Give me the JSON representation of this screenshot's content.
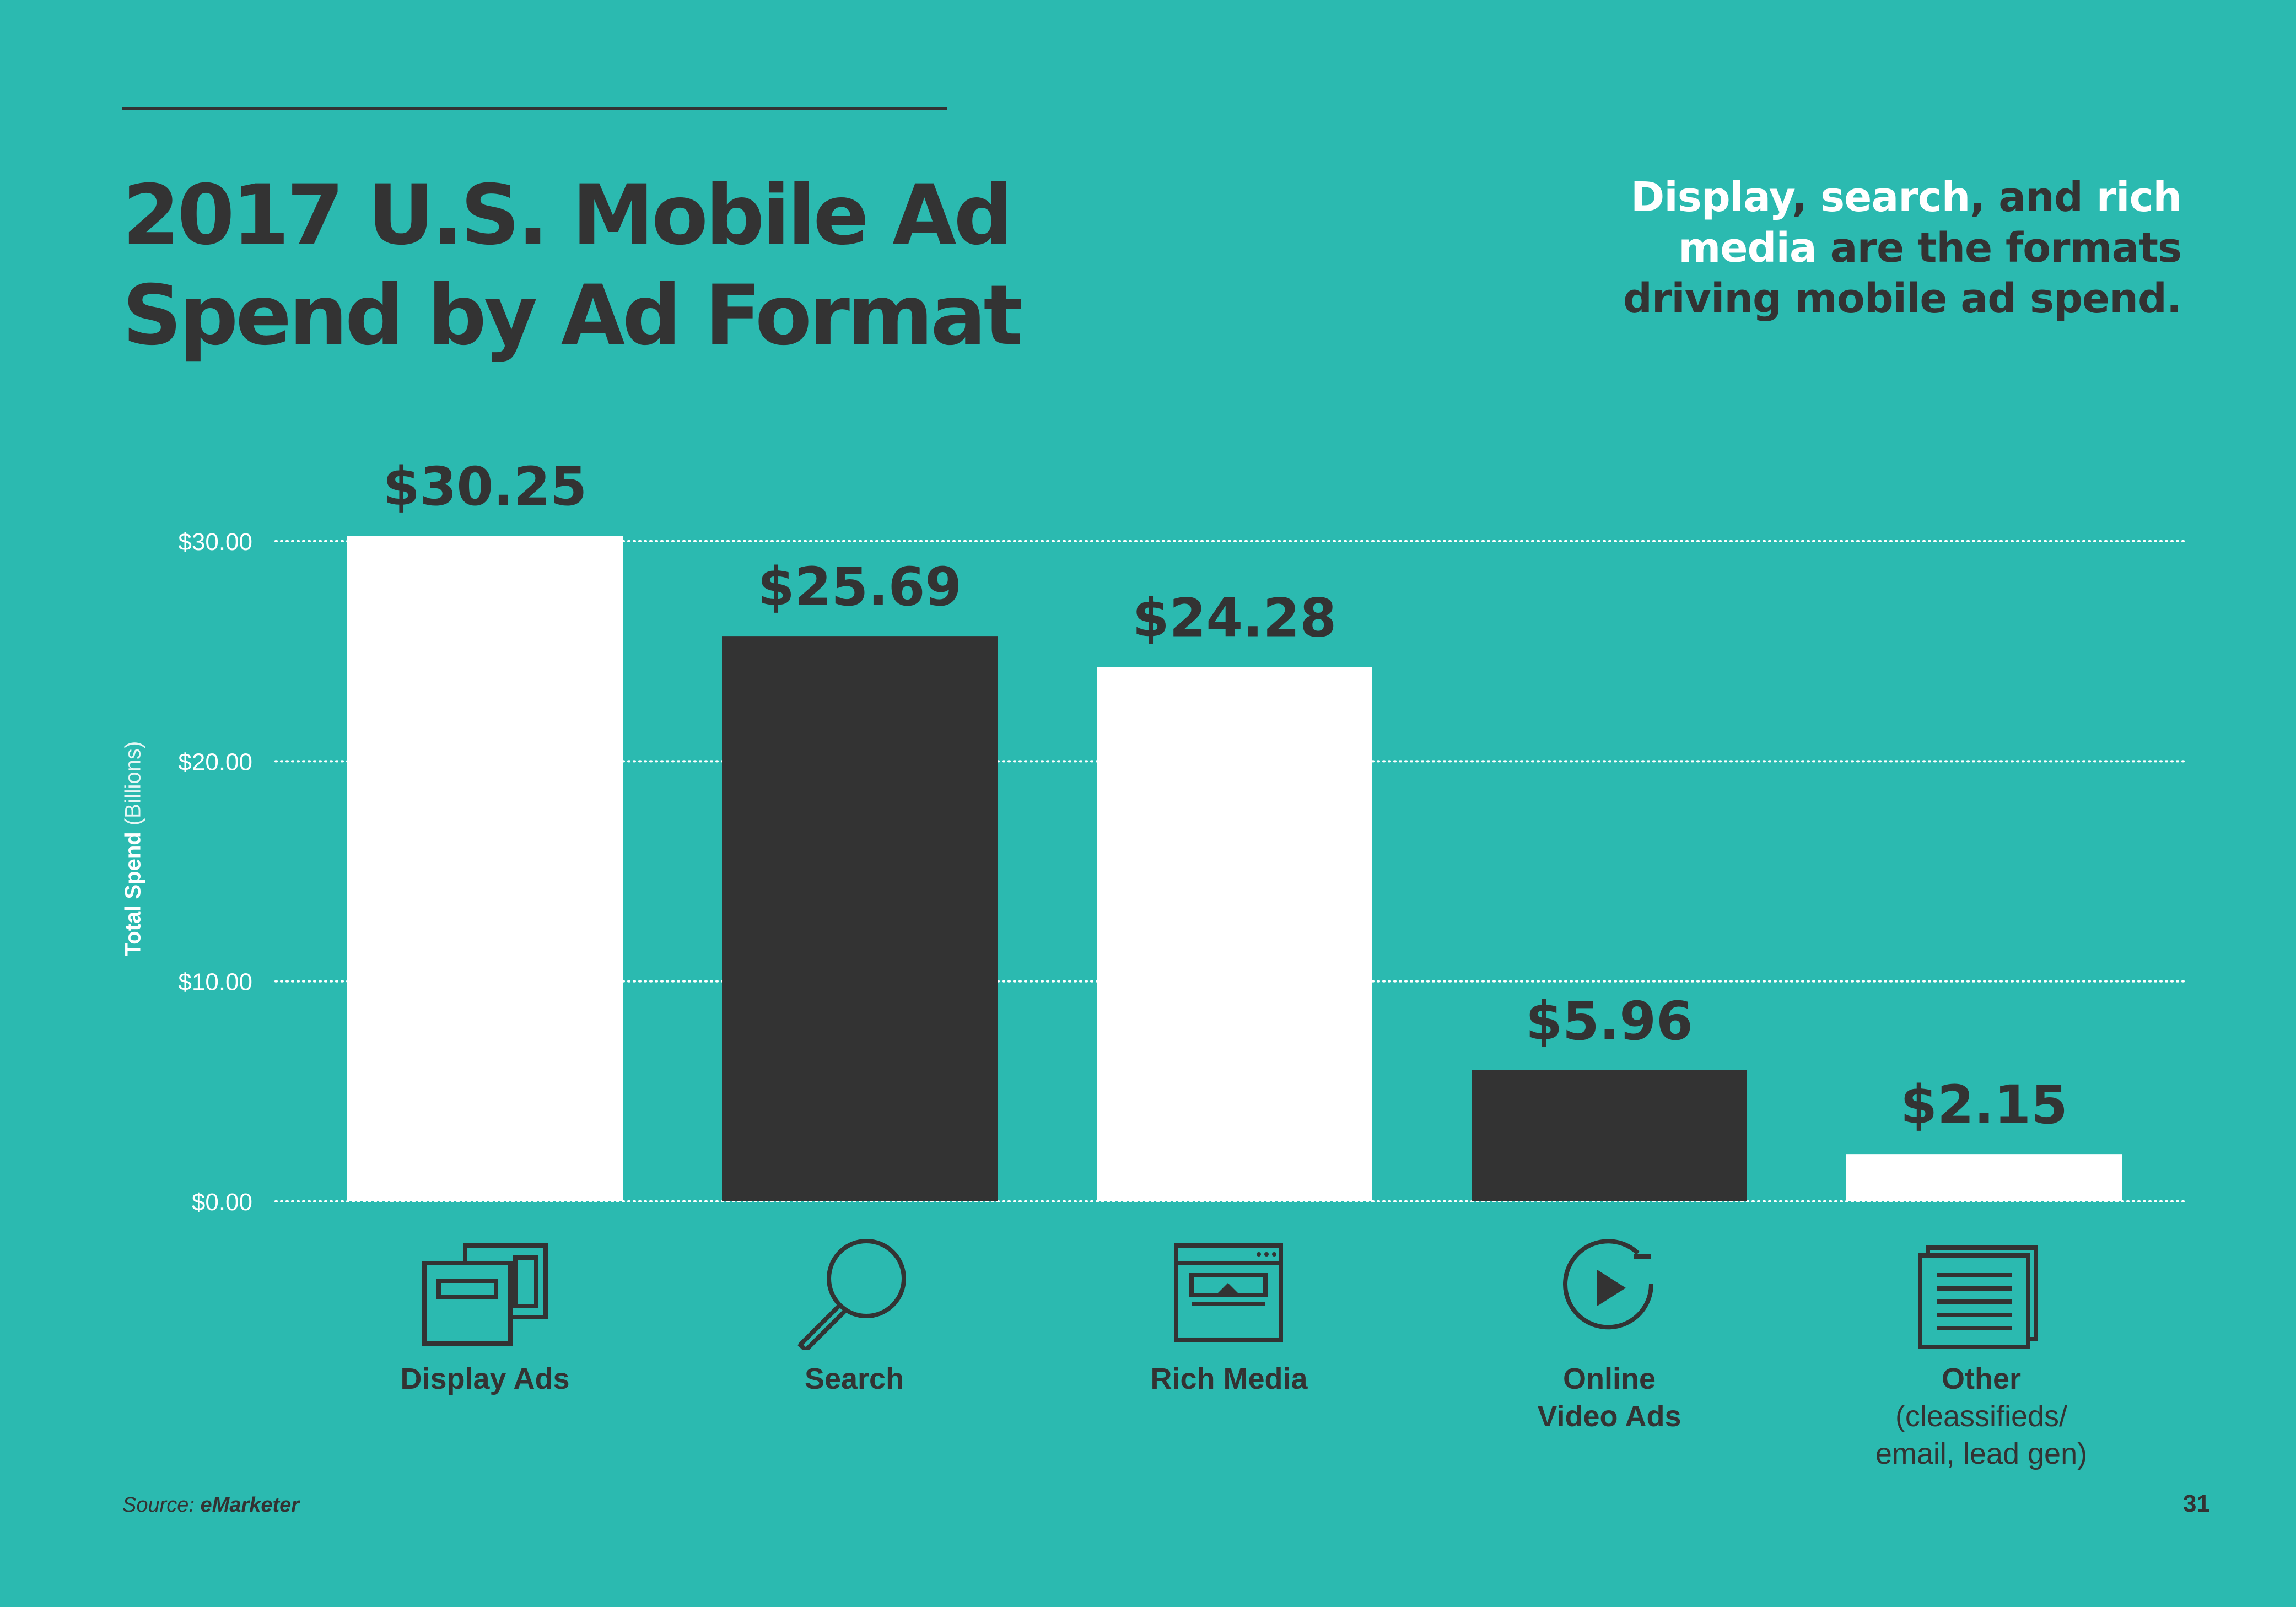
{
  "header": {
    "title_line1": "2017 U.S. Mobile Ad",
    "title_line2": "Spend by Ad Format",
    "callout": {
      "w1": "Display",
      "w2": ",",
      "w3": "search",
      "w4": ", and",
      "w5": "rich",
      "w6": "media",
      "w7": "are the formats",
      "w8": "driving mobile ad spend."
    }
  },
  "colors": {
    "background": "#2bbab0",
    "dark": "#333333",
    "light": "#ffffff"
  },
  "chart_data": {
    "type": "bar",
    "ylabel_bold": "Total Spend",
    "ylabel_unit": "(Billions)",
    "ylim": [
      0,
      30
    ],
    "yticks": [
      {
        "value": 0,
        "label": "$0.00"
      },
      {
        "value": 10,
        "label": "$10.00"
      },
      {
        "value": 20,
        "label": "$20.00"
      },
      {
        "value": 30,
        "label": "$30.00"
      }
    ],
    "grid": "dotted horizontal",
    "categories": [
      "Display Ads",
      "Search",
      "Rich Media",
      "Online Video Ads",
      "Other (cleassifieds/ email, lead gen)"
    ],
    "values": [
      30.25,
      25.69,
      24.28,
      5.96,
      2.15
    ],
    "value_labels": [
      "$30.25",
      "$25.69",
      "$24.28",
      "$5.96",
      "$2.15"
    ],
    "bar_colors": [
      "#ffffff",
      "#333333",
      "#ffffff",
      "#333333",
      "#ffffff"
    ]
  },
  "categories_text": {
    "c1": "Display Ads",
    "c2": "Search",
    "c3": "Rich Media",
    "c4a": "Online",
    "c4b": "Video Ads",
    "c5a": "Other",
    "c5b": "(cleassifieds/",
    "c5c": "email, lead gen)"
  },
  "icons": [
    "display-ads-icon",
    "search-icon",
    "rich-media-icon",
    "video-play-icon",
    "other-document-icon"
  ],
  "footer": {
    "source_label": "Source:",
    "source_name": "eMarketer",
    "page_number": "31"
  }
}
